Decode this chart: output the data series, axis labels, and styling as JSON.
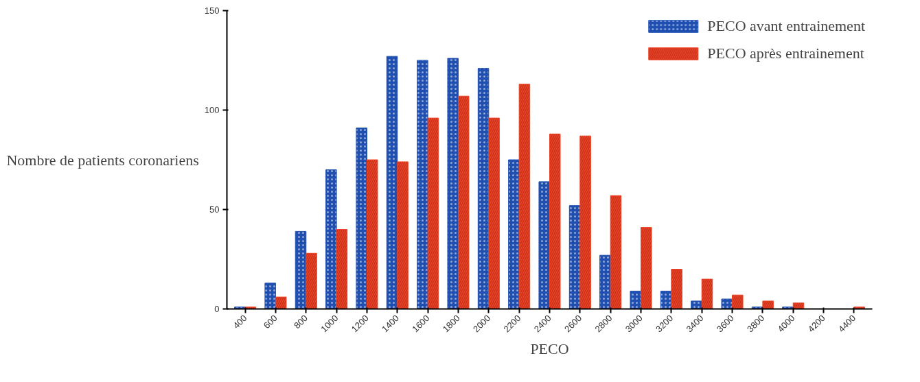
{
  "chart_data": {
    "type": "bar",
    "xlabel": "PECO",
    "ylabel": "Nombre de patients coronariens",
    "categories": [
      "400",
      "600",
      "800",
      "1000",
      "1200",
      "1400",
      "1600",
      "1800",
      "2000",
      "2200",
      "2400",
      "2600",
      "2800",
      "3000",
      "3200",
      "3400",
      "3600",
      "3800",
      "4000",
      "4200",
      "4400"
    ],
    "series": [
      {
        "name": "PECO avant entrainement",
        "color": "#1f4fb0",
        "values": [
          1,
          13,
          39,
          70,
          91,
          127,
          125,
          126,
          121,
          75,
          64,
          52,
          27,
          9,
          9,
          4,
          5,
          1,
          1,
          0,
          0
        ]
      },
      {
        "name": "PECO après entrainement",
        "color": "#ee4427",
        "values": [
          1,
          6,
          28,
          40,
          75,
          74,
          96,
          107,
          96,
          113,
          88,
          87,
          57,
          41,
          20,
          15,
          7,
          4,
          3,
          0,
          1
        ]
      }
    ],
    "ylim": [
      0,
      150
    ],
    "yticks": [
      0,
      50,
      100,
      150
    ],
    "grid": false,
    "legend": "top right"
  }
}
